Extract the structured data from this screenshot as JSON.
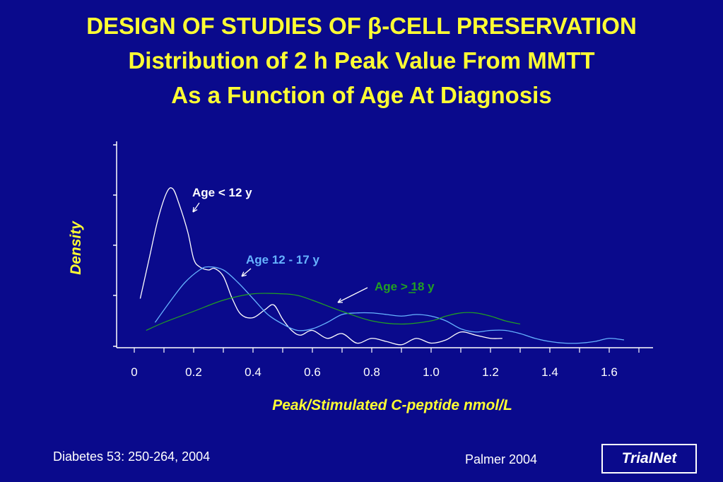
{
  "title_lines": [
    "DESIGN OF STUDIES OF β-CELL PRESERVATION",
    "Distribution of 2 h Peak Value From MMTT",
    "As a Function of Age At Diagnosis"
  ],
  "footer": {
    "citation": "Diabetes 53: 250-264, 2004",
    "author": "Palmer 2004",
    "logo": "TrialNet"
  },
  "colors": {
    "background": "#0a0a8c",
    "title": "#ffff33",
    "series_under12": "#ffffff",
    "series_12_17": "#66b3ff",
    "series_18plus": "#22a022"
  },
  "chart_data": {
    "type": "line",
    "title": "",
    "xlabel": "Peak/Stimulated C-peptide nmol/L",
    "ylabel": "Density",
    "xlim": [
      -0.05,
      1.75
    ],
    "ylim": [
      0,
      1
    ],
    "x_ticks": [
      "0",
      "0.2",
      "0.4",
      "0.6",
      "0.8",
      "1.0",
      "1.2",
      "1.4",
      "1.6"
    ],
    "x_tick_values": [
      0,
      0.2,
      0.4,
      0.6,
      0.8,
      1.0,
      1.2,
      1.4,
      1.6
    ],
    "y_ticks_labeled": false,
    "grid": false,
    "series": [
      {
        "name": "Age < 12 y",
        "label_text": "Age < 12 y",
        "color": "#ffffff",
        "x": [
          0.02,
          0.05,
          0.08,
          0.11,
          0.13,
          0.15,
          0.18,
          0.2,
          0.22,
          0.25,
          0.27,
          0.3,
          0.33,
          0.36,
          0.4,
          0.44,
          0.47,
          0.5,
          0.53,
          0.56,
          0.6,
          0.65,
          0.7,
          0.75,
          0.8,
          0.85,
          0.9,
          0.95,
          1.0,
          1.05,
          1.1,
          1.15,
          1.2,
          1.24
        ],
        "y": [
          0.3,
          0.55,
          0.8,
          0.97,
          0.99,
          0.9,
          0.72,
          0.55,
          0.5,
          0.48,
          0.49,
          0.44,
          0.3,
          0.2,
          0.18,
          0.23,
          0.26,
          0.17,
          0.1,
          0.07,
          0.1,
          0.05,
          0.08,
          0.02,
          0.05,
          0.03,
          0.01,
          0.05,
          0.02,
          0.04,
          0.09,
          0.07,
          0.05,
          0.05
        ]
      },
      {
        "name": "Age 12 - 17 y",
        "label_text": "Age 12 - 17 y",
        "color": "#66b3ff",
        "x": [
          0.07,
          0.12,
          0.17,
          0.22,
          0.25,
          0.3,
          0.35,
          0.4,
          0.45,
          0.5,
          0.55,
          0.6,
          0.65,
          0.7,
          0.75,
          0.8,
          0.85,
          0.9,
          0.95,
          1.0,
          1.05,
          1.1,
          1.15,
          1.2,
          1.25,
          1.3,
          1.35,
          1.4,
          1.45,
          1.5,
          1.55,
          1.6,
          1.65
        ],
        "y": [
          0.15,
          0.28,
          0.4,
          0.48,
          0.5,
          0.48,
          0.4,
          0.3,
          0.2,
          0.14,
          0.1,
          0.11,
          0.15,
          0.2,
          0.21,
          0.21,
          0.2,
          0.19,
          0.2,
          0.19,
          0.16,
          0.11,
          0.09,
          0.1,
          0.1,
          0.08,
          0.05,
          0.03,
          0.02,
          0.02,
          0.03,
          0.05,
          0.04
        ]
      },
      {
        "name": "Age > 18 y",
        "label_text": "Age > 18 y",
        "color": "#22a022",
        "x": [
          0.04,
          0.1,
          0.2,
          0.3,
          0.4,
          0.5,
          0.55,
          0.6,
          0.7,
          0.8,
          0.9,
          1.0,
          1.05,
          1.1,
          1.15,
          1.2,
          1.25,
          1.3
        ],
        "y": [
          0.1,
          0.15,
          0.22,
          0.29,
          0.33,
          0.33,
          0.32,
          0.29,
          0.22,
          0.16,
          0.14,
          0.16,
          0.19,
          0.21,
          0.21,
          0.19,
          0.16,
          0.14
        ]
      }
    ]
  }
}
